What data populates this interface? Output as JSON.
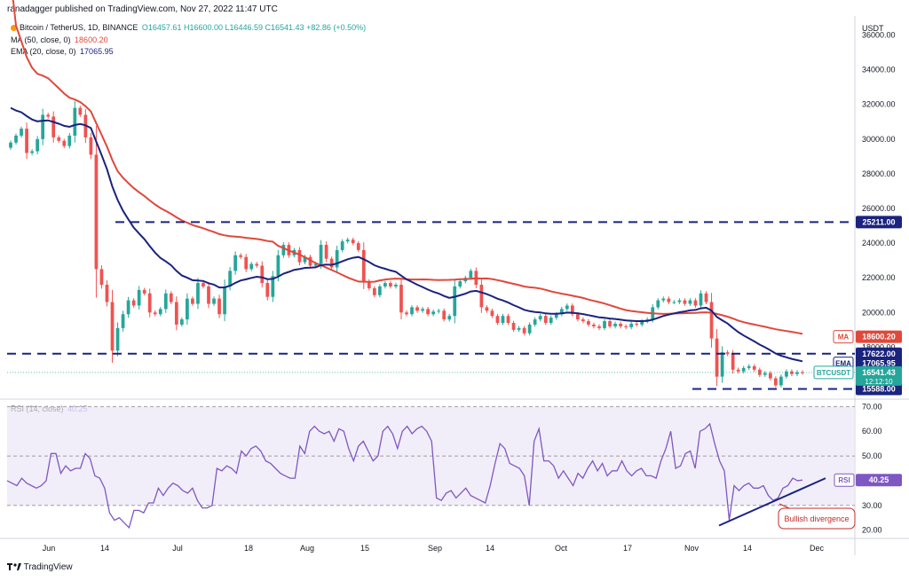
{
  "header": {
    "publisher": "ranadagger published on TradingView.com, Nov 27, 2022 11:47 UTC"
  },
  "legend": {
    "symbol": "Bitcoin / TetherUS, 1D, BINANCE",
    "ohlc": "O16457.61 H16600.00 L16446.59 C16541.43 +82.86 (+0.50%)",
    "ma_label": "MA (50, close, 0)",
    "ma_value": "18600.20",
    "ema_label": "EMA (20, close, 0)",
    "ema_value": "17065.95",
    "rsi_label": "RSI (14, close)",
    "rsi_value": "40.25"
  },
  "colors": {
    "up": "#26a69a",
    "down": "#ef5350",
    "ma": "#e0483b",
    "ema": "#1a237e",
    "rsi": "#7e57c2",
    "level": "#1a237e",
    "rsi_band": "#ede7f6"
  },
  "chart_data": [
    {
      "type": "candlestick",
      "title": "",
      "price_axis_unit": "USDT",
      "ylim": [
        15000,
        37000
      ],
      "y_ticks": [
        16000,
        18000,
        20000,
        22000,
        24000,
        26000,
        28000,
        30000,
        32000,
        34000,
        36000
      ],
      "y_tick_labels": [
        "16000.00",
        "18000.00",
        "20000.00",
        "22000.00",
        "24000.00",
        "26000.00",
        "28000.00",
        "30000.00",
        "32000.00",
        "34000.00",
        "36000.00"
      ],
      "x_ticks": [
        "Jun",
        "14",
        "Jul",
        "18",
        "Aug",
        "15",
        "Sep",
        "14",
        "Oct",
        "17",
        "Nov",
        "14",
        "Dec"
      ],
      "close_path": [
        29800,
        30200,
        30600,
        29200,
        29300,
        30000,
        31400,
        31300,
        30100,
        29900,
        29600,
        30200,
        31800,
        31400,
        30100,
        29100,
        22500,
        21600,
        20600,
        17800,
        19100,
        19900,
        20700,
        20400,
        21300,
        21100,
        20000,
        19900,
        20200,
        21100,
        20600,
        19300,
        19600,
        20800,
        20500,
        21700,
        21500,
        20500,
        20800,
        19900,
        21500,
        22400,
        23300,
        23200,
        22500,
        22800,
        22700,
        21700,
        20900,
        22100,
        23300,
        23900,
        23300,
        23600,
        22900,
        23200,
        22700,
        22800,
        23900,
        23100,
        22600,
        23600,
        24100,
        24200,
        24000,
        23600,
        21800,
        21400,
        21000,
        21500,
        21700,
        21500,
        21600,
        20000,
        19900,
        20300,
        20100,
        20200,
        19900,
        20050,
        20100,
        19600,
        19800,
        21500,
        21800,
        22000,
        22400,
        21600,
        20300,
        20100,
        19800,
        19400,
        19800,
        19400,
        19000,
        19100,
        18800,
        19300,
        19600,
        19800,
        19400,
        19700,
        19900,
        20200,
        20400,
        19900,
        19600,
        19500,
        19300,
        19200,
        19100,
        19500,
        19200,
        19350,
        19200,
        19150,
        19350,
        19300,
        19500,
        19600,
        20300,
        20700,
        20800,
        20600,
        20600,
        20700,
        20500,
        20700,
        20400,
        21100,
        20600,
        18500,
        16300,
        17700,
        17600,
        16700,
        16600,
        16800,
        16900,
        16700,
        16400,
        16500,
        16200,
        15800,
        16300,
        16600,
        16450,
        16550,
        16541
      ],
      "markers": [
        {
          "label": "25211.00",
          "value": 25211,
          "kind": "dashed-level"
        },
        {
          "label": "17622.00",
          "value": 17622,
          "kind": "dashed-level"
        },
        {
          "label": "15588.00",
          "value": 15588,
          "kind": "dashed-level"
        }
      ],
      "price_labels": [
        {
          "name": "MA",
          "value": "18600.20",
          "price": 18600.2
        },
        {
          "name": "EMA",
          "value": "17065.95",
          "price": 17065.95
        },
        {
          "name": "BTCUSDT",
          "value": "16541.43",
          "price": 16541.43,
          "sub": "12:12:10"
        }
      ]
    },
    {
      "type": "line",
      "title": "",
      "ylim": [
        17,
        73
      ],
      "y_ticks": [
        20,
        30,
        40,
        50,
        60,
        70
      ],
      "y_tick_labels": [
        "20.00",
        "30.00",
        "40.00",
        "50.00",
        "60.00",
        "70.00"
      ],
      "band": [
        30,
        70
      ],
      "mid": 50,
      "rsi_label_value": "40.25",
      "annotation": "Bullish divergence",
      "values": [
        40,
        39,
        38,
        41,
        39,
        38,
        37,
        38,
        40,
        51,
        51,
        43,
        46,
        44,
        45,
        45,
        51,
        49,
        42,
        41,
        37,
        27,
        24,
        25,
        23,
        21,
        28,
        28,
        27,
        31,
        31,
        37,
        34,
        37,
        39,
        38,
        36,
        35,
        37,
        32,
        29,
        29,
        30,
        45,
        44,
        46,
        45,
        43,
        52,
        50,
        53,
        54,
        52,
        48,
        47,
        45,
        43,
        42,
        41,
        41,
        54,
        51,
        60,
        62,
        60,
        59,
        60,
        56,
        61,
        60,
        53,
        48,
        54,
        56,
        52,
        48,
        50,
        60,
        62,
        59,
        53,
        60,
        62,
        59,
        61,
        62,
        60,
        56,
        33,
        32,
        35,
        36,
        33,
        35,
        37,
        34,
        33,
        32,
        31,
        38,
        47,
        55,
        53,
        47,
        46,
        45,
        42,
        30,
        56,
        61,
        48,
        48,
        46,
        41,
        44,
        41,
        38,
        43,
        41,
        45,
        48,
        44,
        47,
        42,
        44,
        44,
        48,
        44,
        42,
        44,
        45,
        42,
        42,
        41,
        48,
        53,
        60,
        45,
        46,
        51,
        52,
        45,
        60,
        61,
        63,
        55,
        48,
        44,
        24,
        38,
        36,
        38,
        39,
        37,
        37,
        38,
        34,
        32,
        33,
        37,
        38,
        41,
        40,
        40.25
      ],
      "divergence_line": {
        "from_index": 143,
        "from_value": 24,
        "to_index": 166,
        "to_value": 38
      }
    }
  ],
  "footer": {
    "brand": "TradingView"
  }
}
